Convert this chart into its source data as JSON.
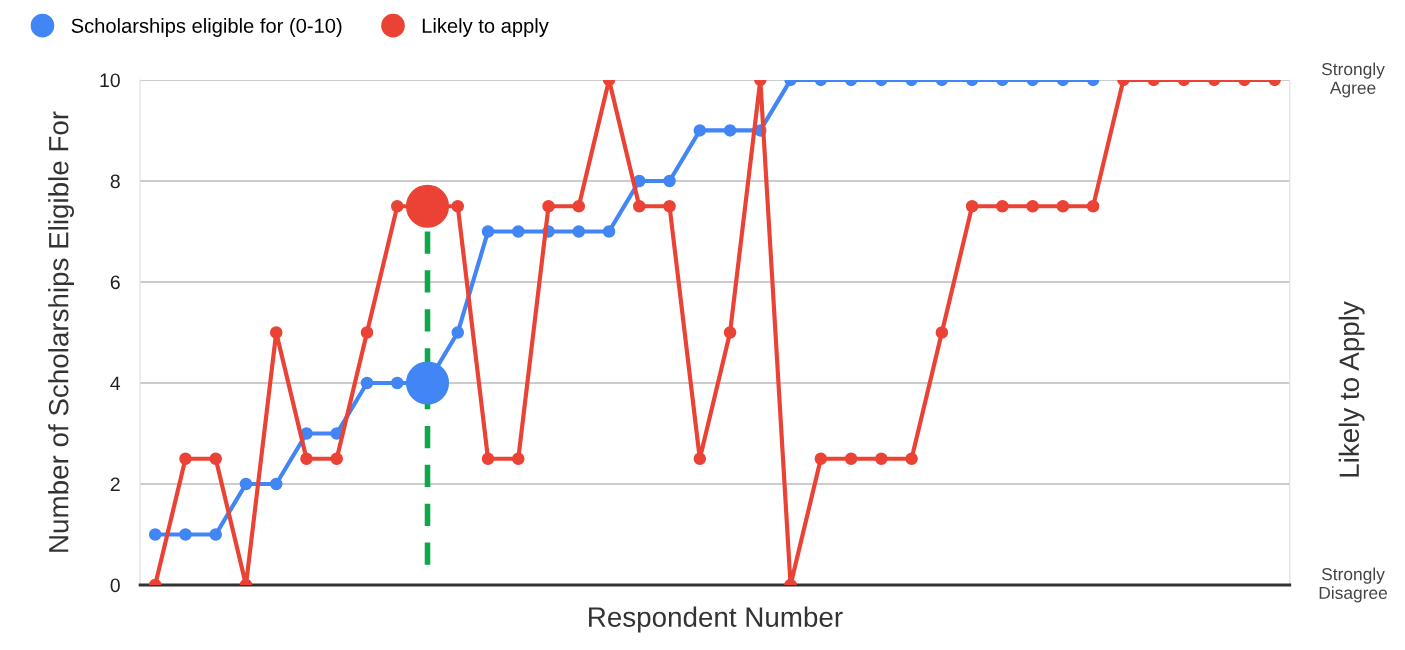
{
  "chart_data": {
    "type": "line",
    "xlabel": "Respondent Number",
    "ylabel": "Number of Scholarships Eligible For",
    "y2label": "Likely to Apply",
    "annotations": [
      "Strongly\nAgree",
      "Strongly\nDisagree"
    ],
    "categories": [
      null,
      null,
      null,
      null,
      null,
      null,
      null,
      null,
      null,
      null,
      null,
      null,
      null,
      null,
      null,
      null,
      null,
      null,
      null,
      null,
      null,
      null,
      null,
      null,
      null,
      null,
      null,
      null,
      null,
      null,
      null,
      null,
      null,
      null,
      null,
      null,
      null,
      null
    ],
    "ylim": [
      0,
      10
    ],
    "yticks": [
      0,
      2,
      4,
      6,
      8,
      10
    ],
    "grid": "y",
    "legend": "top left",
    "marker": "circle",
    "line_style": "solid",
    "series": [
      {
        "name": "Scholarships eligible for (0-10)",
        "color": "#4285f4",
        "values": [
          1,
          1,
          1,
          2,
          2,
          3,
          3,
          4,
          4,
          4,
          5,
          7,
          7,
          7,
          7,
          7,
          8,
          8,
          9,
          9,
          9,
          10,
          10,
          10,
          10,
          10,
          10,
          10,
          10,
          10,
          10,
          10,
          null,
          null,
          null,
          null,
          null,
          null
        ]
      },
      {
        "name": "Likely to apply",
        "color": "#ea4335",
        "values": [
          0,
          2.5,
          2.5,
          0,
          5,
          2.5,
          2.5,
          5,
          7.5,
          7.5,
          7.5,
          2.5,
          2.5,
          7.5,
          7.5,
          10,
          7.5,
          7.5,
          2.5,
          5,
          10,
          0,
          2.5,
          2.5,
          2.5,
          2.5,
          5,
          7.5,
          7.5,
          7.5,
          7.5,
          7.5,
          10,
          10,
          10,
          10,
          10,
          10
        ]
      },
      {
        "type": "scatter",
        "color": "#4285f4",
        "values": [
          null,
          null,
          null,
          null,
          null,
          null,
          null,
          null,
          null,
          4,
          null,
          null,
          null,
          null,
          null,
          null,
          null,
          null,
          null,
          null,
          null,
          null,
          null,
          null,
          null,
          null,
          null,
          null,
          null,
          null,
          null,
          null,
          null,
          null,
          null,
          null,
          null,
          null
        ]
      },
      {
        "type": "scatter",
        "color": "#ea4335",
        "values": [
          null,
          null,
          null,
          null,
          null,
          null,
          null,
          null,
          null,
          7.5,
          null,
          null,
          null,
          null,
          null,
          null,
          null,
          null,
          null,
          null,
          null,
          null,
          null,
          null,
          null,
          null,
          null,
          null,
          null,
          null,
          null,
          null,
          null,
          null,
          null,
          null,
          null,
          null
        ]
      }
    ]
  }
}
